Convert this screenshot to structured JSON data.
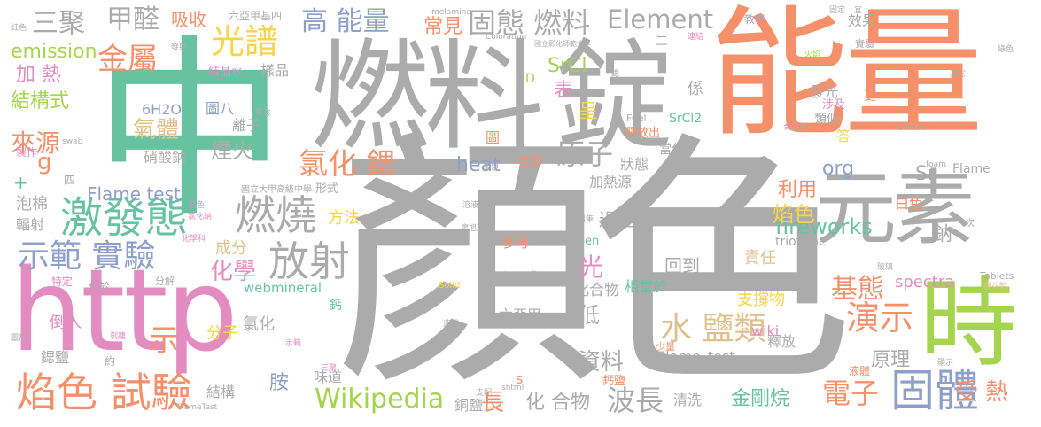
{
  "palette": {
    "gray": "#ababab",
    "orange": "#f4906a",
    "teal": "#67c2a2",
    "blue": "#8ea0ca",
    "pink": "#e38cc1",
    "lime": "#a5d44e",
    "yellow": "#f7d54a",
    "tan": "#dfc18f"
  },
  "words": [
    {
      "id": "w1",
      "text": "顏色",
      "color": "gray"
    },
    {
      "id": "w2",
      "text": "中",
      "color": "teal"
    },
    {
      "id": "w3",
      "text": "能量",
      "color": "orange"
    },
    {
      "id": "w4",
      "text": "燃料",
      "color": "gray"
    },
    {
      "id": "w5",
      "text": "錠",
      "color": "gray"
    },
    {
      "id": "w6",
      "text": "http",
      "color": "pink"
    },
    {
      "id": "w7",
      "text": "元素",
      "color": "gray"
    },
    {
      "id": "w8",
      "text": "時",
      "color": "lime"
    },
    {
      "id": "w9",
      "text": "激發態",
      "color": "teal"
    },
    {
      "id": "w10",
      "text": "燃燒",
      "color": "gray"
    },
    {
      "id": "w11",
      "text": "放射",
      "color": "gray"
    },
    {
      "id": "w12",
      "text": "焰色 試驗",
      "color": "orange"
    },
    {
      "id": "w13",
      "text": "示範 實驗",
      "color": "blue"
    },
    {
      "id": "w14",
      "text": "固體",
      "color": "blue"
    },
    {
      "id": "w15",
      "text": "Wikipedia",
      "color": "lime"
    },
    {
      "id": "w16",
      "text": "高 能量",
      "color": "blue"
    },
    {
      "id": "w17",
      "text": "固態 燃料",
      "color": "gray"
    },
    {
      "id": "w18",
      "text": "甲醛",
      "color": "gray"
    },
    {
      "id": "w19",
      "text": "三聚",
      "color": "gray"
    },
    {
      "id": "w20",
      "text": "金屬",
      "color": "orange"
    },
    {
      "id": "w21",
      "text": "光譜",
      "color": "yellow"
    },
    {
      "id": "w22",
      "text": "氯化 鍶",
      "color": "orange"
    },
    {
      "id": "w23",
      "text": "原子",
      "color": "gray"
    },
    {
      "id": "w24",
      "text": "Element",
      "color": "gray"
    },
    {
      "id": "w25",
      "text": "演示",
      "color": "orange"
    },
    {
      "id": "w26",
      "text": "水 鹽類",
      "color": "tan"
    },
    {
      "id": "w27",
      "text": "電子",
      "color": "orange"
    },
    {
      "id": "w28",
      "text": "波長",
      "color": "gray"
    },
    {
      "id": "w29",
      "text": "資料",
      "color": "gray"
    },
    {
      "id": "w30",
      "text": "基態",
      "color": "orange"
    },
    {
      "id": "w31",
      "text": "來源",
      "color": "orange"
    },
    {
      "id": "w32",
      "text": "結構式",
      "color": "lime"
    },
    {
      "id": "w33",
      "text": "加 熱",
      "color": "pink"
    },
    {
      "id": "w34",
      "text": "emission",
      "color": "lime"
    },
    {
      "id": "w35",
      "text": "吸收",
      "color": "orange"
    },
    {
      "id": "w36",
      "text": "化學",
      "color": "pink"
    },
    {
      "id": "w37",
      "text": "氣體",
      "color": "tan"
    },
    {
      "id": "w38",
      "text": "煙火",
      "color": "gray"
    },
    {
      "id": "w39",
      "text": "fireworks",
      "color": "teal"
    },
    {
      "id": "w40",
      "text": "焰色",
      "color": "yellow"
    },
    {
      "id": "w41",
      "text": "heat",
      "color": "blue"
    },
    {
      "id": "w42",
      "text": "org",
      "color": "blue"
    },
    {
      "id": "w43",
      "text": "Flame test",
      "color": "blue"
    },
    {
      "id": "w44",
      "text": "SrCl",
      "color": "lime"
    },
    {
      "id": "w45",
      "text": "常見",
      "color": "orange"
    },
    {
      "id": "w46",
      "text": "受 熱",
      "color": "orange"
    },
    {
      "id": "w47",
      "text": "金剛烷",
      "color": "teal"
    },
    {
      "id": "w48",
      "text": "長",
      "color": "orange"
    },
    {
      "id": "w49",
      "text": "化 合物",
      "color": "gray"
    },
    {
      "id": "w50",
      "text": "光",
      "color": "pink"
    },
    {
      "id": "w51",
      "text": "呈",
      "color": "yellow"
    },
    {
      "id": "w52",
      "text": "表",
      "color": "pink"
    },
    {
      "id": "w53",
      "text": "示",
      "color": "orange"
    },
    {
      "id": "w54",
      "text": "利用",
      "color": "orange"
    },
    {
      "id": "w55",
      "text": "低",
      "color": "gray"
    },
    {
      "id": "w56",
      "text": "過程",
      "color": "gray"
    },
    {
      "id": "w57",
      "text": "回到",
      "color": "gray"
    },
    {
      "id": "w58",
      "text": "原理",
      "color": "gray"
    },
    {
      "id": "w59",
      "text": "責任",
      "color": "tan"
    },
    {
      "id": "w60",
      "text": "支撐物",
      "color": "yellow"
    },
    {
      "id": "w61",
      "text": "spectra",
      "color": "pink"
    },
    {
      "id": "w62",
      "text": "鈉",
      "color": "gray"
    },
    {
      "id": "w63",
      "text": "Sr",
      "color": "gray"
    },
    {
      "id": "w64",
      "text": "方法",
      "color": "yellow"
    },
    {
      "id": "w65",
      "text": "成分",
      "color": "tan"
    },
    {
      "id": "w66",
      "text": "分子",
      "color": "yellow"
    },
    {
      "id": "w67",
      "text": "氯化",
      "color": "gray"
    },
    {
      "id": "w68",
      "text": "胺",
      "color": "blue"
    },
    {
      "id": "w69",
      "text": "wiki",
      "color": "pink"
    },
    {
      "id": "w70",
      "text": "釋放",
      "color": "gray"
    },
    {
      "id": "w71",
      "text": "清洗",
      "color": "gray"
    },
    {
      "id": "w72",
      "text": "銅鹽",
      "color": "gray"
    },
    {
      "id": "w73",
      "text": "結構",
      "color": "gray"
    },
    {
      "id": "w74",
      "text": "味道",
      "color": "gray"
    },
    {
      "id": "w75",
      "text": "鍶鹽",
      "color": "gray"
    },
    {
      "id": "w76",
      "text": "倒入",
      "color": "pink"
    },
    {
      "id": "w77",
      "text": "泡棉",
      "color": "gray"
    },
    {
      "id": "w78",
      "text": "輻射",
      "color": "gray"
    },
    {
      "id": "w79",
      "text": "webmineral",
      "color": "teal"
    },
    {
      "id": "w80",
      "text": "分子式",
      "color": "gray"
    },
    {
      "id": "w81",
      "text": "六亞甲",
      "color": "gray"
    },
    {
      "id": "w82",
      "text": "參考",
      "color": "orange"
    },
    {
      "id": "w83",
      "text": "化合物",
      "color": "gray"
    },
    {
      "id": "w84",
      "text": "相當於",
      "color": "teal"
    },
    {
      "id": "w85",
      "text": "Flame_test",
      "color": "gray"
    },
    {
      "id": "w86",
      "text": "trioxane",
      "color": "gray"
    },
    {
      "id": "w87",
      "text": "白色",
      "color": "orange"
    },
    {
      "id": "w88",
      "text": "硝酸鈉",
      "color": "gray"
    },
    {
      "id": "w89",
      "text": "6H2O",
      "color": "blue"
    },
    {
      "id": "w90",
      "text": "圖八",
      "color": "blue"
    },
    {
      "id": "w91",
      "text": "離子",
      "color": "gray"
    },
    {
      "id": "w92",
      "text": "結晶水",
      "color": "pink"
    },
    {
      "id": "w93",
      "text": "樣品",
      "color": "gray"
    },
    {
      "id": "w94",
      "text": "六亞甲基四",
      "color": "gray"
    },
    {
      "id": "w95",
      "text": "效果",
      "color": "gray"
    },
    {
      "id": "w96",
      "text": "教學",
      "color": "gray"
    },
    {
      "id": "w97",
      "text": "實驗",
      "color": "gray"
    },
    {
      "id": "w98",
      "text": "係",
      "color": "gray"
    },
    {
      "id": "w99",
      "text": "發光",
      "color": "gray"
    },
    {
      "id": "w100",
      "text": "涉及",
      "color": "pink"
    },
    {
      "id": "w101",
      "text": "類似",
      "color": "gray"
    },
    {
      "id": "w102",
      "text": "答",
      "color": "yellow"
    },
    {
      "id": "w103",
      "text": "狀態",
      "color": "gray"
    },
    {
      "id": "w104",
      "text": "當作",
      "color": "gray"
    },
    {
      "id": "w105",
      "text": "呈現",
      "color": "gray"
    },
    {
      "id": "w106",
      "text": "加熱源",
      "color": "gray"
    },
    {
      "id": "w107",
      "text": "老師",
      "color": "orange"
    },
    {
      "id": "w108",
      "text": "圖",
      "color": "orange"
    },
    {
      "id": "w109",
      "text": "釋放出",
      "color": "orange"
    },
    {
      "id": "w110",
      "text": "SrCl2",
      "color": "teal"
    },
    {
      "id": "w111",
      "text": "Fuel",
      "color": "gray"
    },
    {
      "id": "w112",
      "text": "Flame",
      "color": "gray"
    },
    {
      "id": "w113",
      "text": "形式",
      "color": "gray"
    },
    {
      "id": "w114",
      "text": "國立大甲高級中學",
      "color": "gray"
    },
    {
      "id": "w115",
      "text": "鈣",
      "color": "teal"
    },
    {
      "id": "w116",
      "text": "鈣鹽",
      "color": "orange"
    },
    {
      "id": "w117",
      "text": "s",
      "color": "orange"
    },
    {
      "id": "w118",
      "text": "en",
      "color": "teal"
    },
    {
      "id": "w119",
      "text": "液體",
      "color": "orange"
    },
    {
      "id": "w120",
      "text": "少量",
      "color": "orange"
    },
    {
      "id": "w121",
      "text": "甲醛",
      "color": "gray"
    },
    {
      "id": "w122",
      "text": "更",
      "color": "orange"
    },
    {
      "id": "w123",
      "text": "D",
      "color": "lime"
    },
    {
      "id": "w124",
      "text": "四",
      "color": "gray"
    },
    {
      "id": "w125",
      "text": "g",
      "color": "orange"
    },
    {
      "id": "w126",
      "text": "特定",
      "color": "pink"
    },
    {
      "id": "w127",
      "text": "位於",
      "color": "gray"
    },
    {
      "id": "w128",
      "text": "分解",
      "color": "gray"
    },
    {
      "id": "w129",
      "text": "約",
      "color": "gray"
    },
    {
      "id": "w130",
      "text": "製作",
      "color": "pink"
    },
    {
      "id": "w131",
      "text": "melamine",
      "color": "gray"
    },
    {
      "id": "w132",
      "text": "Coloration",
      "color": "gray"
    },
    {
      "id": "w133",
      "text": "國立彰化師範大學",
      "color": "gray"
    },
    {
      "id": "w134",
      "text": "發射",
      "color": "gray"
    },
    {
      "id": "w135",
      "text": "cotton",
      "color": "gray"
    },
    {
      "id": "w136",
      "text": "foam",
      "color": "gray"
    },
    {
      "id": "w137",
      "text": "Tablets",
      "color": "gray"
    },
    {
      "id": "w138",
      "text": "Solid",
      "color": "yellow"
    },
    {
      "id": "w139",
      "text": "shtml",
      "color": "gray"
    },
    {
      "id": "w140",
      "text": "FlameTest",
      "color": "gray"
    },
    {
      "id": "w141",
      "text": "swab",
      "color": "gray"
    },
    {
      "id": "w142",
      "text": "化學科",
      "color": "pink"
    },
    {
      "id": "w143",
      "text": "廖旭茂",
      "color": "gray"
    },
    {
      "id": "w144",
      "text": "次",
      "color": "gray"
    },
    {
      "id": "w145",
      "text": "橙花醇",
      "color": "tan"
    },
    {
      "id": "w146",
      "text": "綠色",
      "color": "gray"
    },
    {
      "id": "w147",
      "text": "火焰",
      "color": "lime"
    },
    {
      "id": "w148",
      "text": "紅色",
      "color": "gray"
    },
    {
      "id": "w149",
      "text": "連結",
      "color": "pink"
    },
    {
      "id": "w150",
      "text": "固定",
      "color": "gray"
    },
    {
      "id": "w151",
      "text": "+",
      "color": "teal"
    },
    {
      "id": "w152",
      "text": "二",
      "color": "gray"
    },
    {
      "id": "w153",
      "text": "玻璃",
      "color": "gray"
    },
    {
      "id": "w154",
      "text": "圖片",
      "color": "gray"
    },
    {
      "id": "w155",
      "text": "宜",
      "color": "gray"
    },
    {
      "id": "w156",
      "text": "藍色",
      "color": "pink"
    },
    {
      "id": "w157",
      "text": "氯化鈉",
      "color": "pink"
    },
    {
      "id": "w158",
      "text": "鍍鎳",
      "color": "gray"
    },
    {
      "id": "w159",
      "text": "鍶",
      "color": "gray"
    },
    {
      "id": "w160",
      "text": "概念",
      "color": "gray"
    },
    {
      "id": "w161",
      "text": "合金絲",
      "color": "gray"
    },
    {
      "id": "w162",
      "text": "鉛筆",
      "color": "gray"
    },
    {
      "id": "w163",
      "text": "剝離",
      "color": "pink"
    },
    {
      "id": "w164",
      "text": "示範",
      "color": "pink"
    },
    {
      "id": "w165",
      "text": "溶液",
      "color": "gray"
    },
    {
      "id": "w166",
      "text": "支配",
      "color": "gray"
    },
    {
      "id": "w167",
      "text": "造成",
      "color": "gray"
    },
    {
      "id": "w168",
      "text": "三聚",
      "color": "pink"
    },
    {
      "id": "w169",
      "text": "其它",
      "color": "gray"
    },
    {
      "id": "w170",
      "text": "顯示",
      "color": "gray"
    }
  ]
}
